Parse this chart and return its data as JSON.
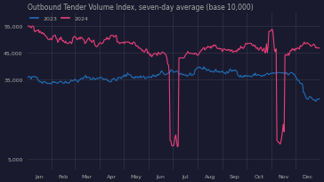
{
  "title": "Outbound Tender Volume Index, seven-day average (base 10,000)",
  "title_fontsize": 5.5,
  "legend_labels": [
    "2023",
    "2024"
  ],
  "line_colors": [
    "#1f6eb5",
    "#e8407a"
  ],
  "bg_color": "#1a1a2e",
  "yticks": [
    5000,
    35000,
    45000,
    55000
  ],
  "ytick_labels": [
    "5,000",
    "35,000",
    "45,000",
    "55,000"
  ],
  "ylim": [
    1000,
    60000
  ],
  "xlim": [
    0,
    365
  ],
  "months": [
    "Jan",
    "Feb",
    "Mar",
    "Apr",
    "May",
    "Jun",
    "Jul",
    "Aug",
    "Sep",
    "Oct",
    "Nov",
    "Dec"
  ],
  "grid_color": "#3a3a50",
  "text_color": "#aaaaaa",
  "line_width": 0.8
}
